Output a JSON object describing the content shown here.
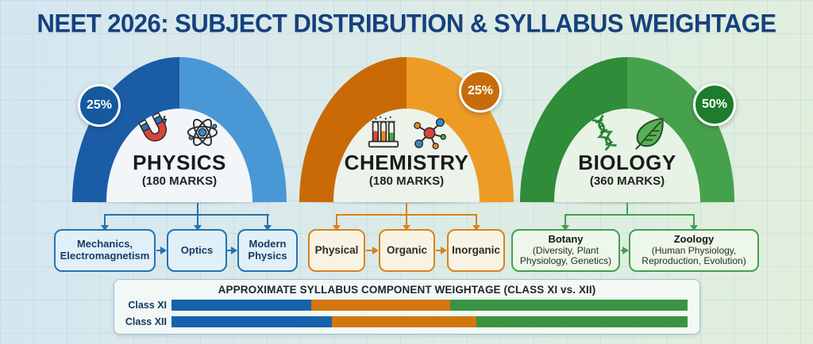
{
  "title": "NEET 2026: SUBJECT DISTRIBUTION & SYLLABUS WEIGHTAGE",
  "background": {
    "gradient_left": "#d5e6f1",
    "gradient_right": "#e0efdc",
    "title_color": "#16417d"
  },
  "subjects": [
    {
      "name": "PHYSICS",
      "marks": "(180 MARKS)",
      "percent": "25%",
      "icons": [
        "magnet-icon",
        "atom-icon"
      ],
      "topics": [
        "Mechanics, Electromagnetism",
        "Optics",
        "Modern Physics"
      ],
      "colors": {
        "arch_dark": "#1a5ca6",
        "arch_light": "#4a97d6",
        "badge": "#15599f",
        "accent": "#2472b0",
        "box_fill": "#e1eff9"
      }
    },
    {
      "name": "CHEMISTRY",
      "marks": "(180 MARKS)",
      "percent": "25%",
      "icons": [
        "test-tubes-icon",
        "molecule-icon"
      ],
      "topics": [
        "Physical",
        "Organic",
        "Inorganic"
      ],
      "colors": {
        "arch_dark": "#c96a07",
        "arch_light": "#ee9b25",
        "badge": "#c76c0a",
        "accent": "#d8821c",
        "box_fill": "#f9f3e3"
      }
    },
    {
      "name": "BIOLOGY",
      "marks": "(360 MARKS)",
      "percent": "50%",
      "icons": [
        "dna-icon",
        "leaf-icon"
      ],
      "topics": [
        {
          "title": "Botany",
          "detail": "(Diversity, Plant Physiology, Genetics)"
        },
        {
          "title": "Zoology",
          "detail": "(Human Physiology, Reproduction, Evolution)"
        }
      ],
      "colors": {
        "arch_dark": "#2f8c39",
        "arch_light": "#46a14c",
        "badge": "#1d7d2c",
        "accent": "#43a04c",
        "box_fill": "#eef7ec"
      }
    }
  ],
  "chart_data": {
    "type": "bar",
    "stacked": true,
    "orientation": "horizontal",
    "title": "APPROXIMATE SYLLABUS COMPONENT WEIGHTAGE (CLASS XI vs. XII)",
    "categories": [
      "Class XI",
      "Class XII"
    ],
    "series": [
      {
        "name": "Physics",
        "color": "#1663ac",
        "values": [
          27,
          31
        ]
      },
      {
        "name": "Chemistry",
        "color": "#d4760e",
        "values": [
          27,
          28
        ]
      },
      {
        "name": "Biology",
        "color": "#3a9443",
        "values": [
          46,
          41
        ]
      }
    ],
    "xlim": [
      0,
      100
    ],
    "unit": "%",
    "legend": "none",
    "grid": false
  }
}
